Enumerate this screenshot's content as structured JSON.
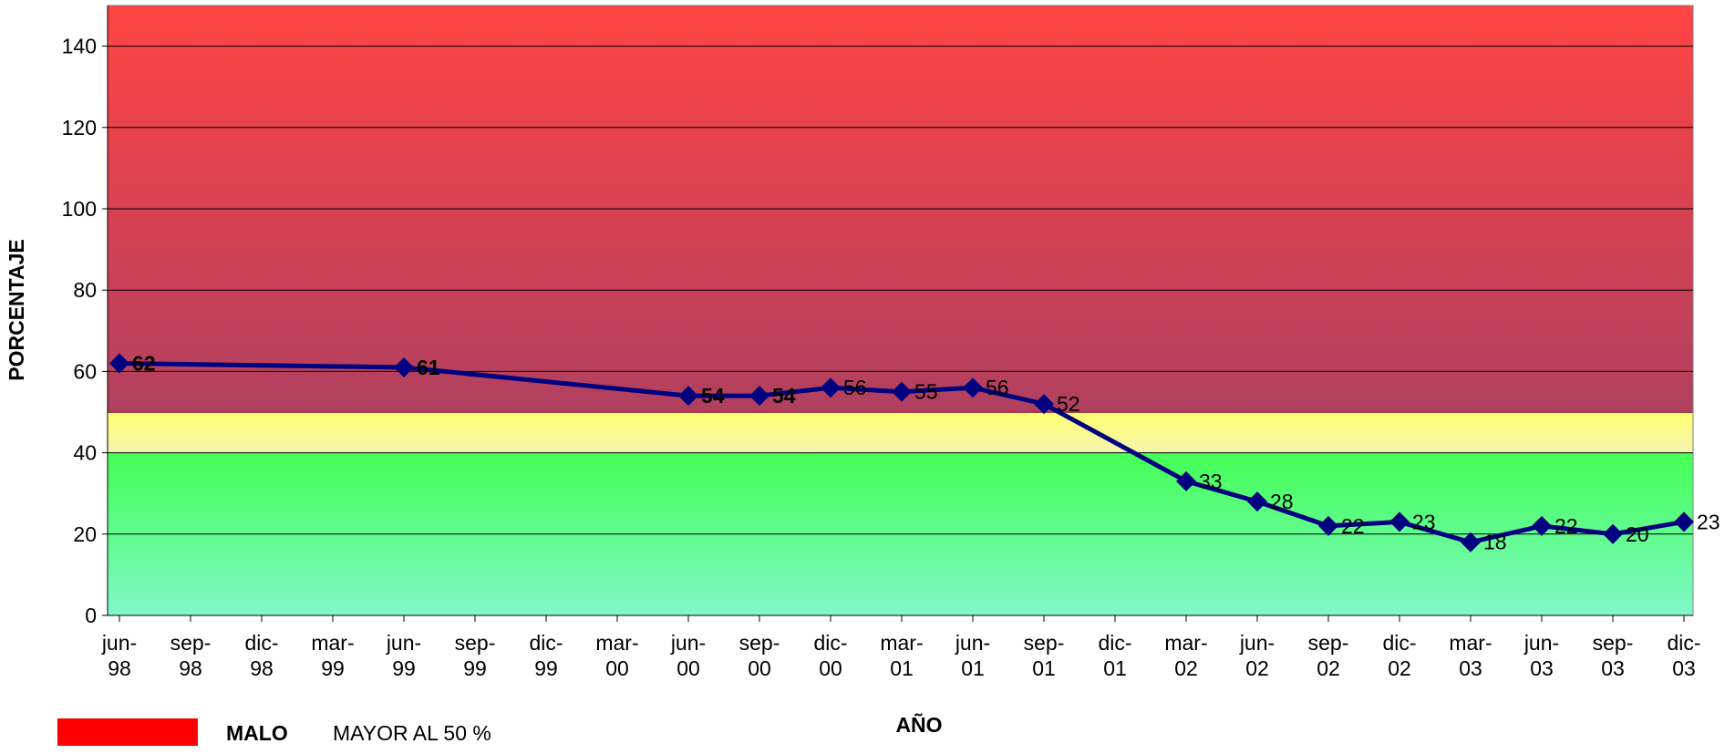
{
  "chart_data": {
    "type": "line",
    "y_label": "PORCENTAJE",
    "x_label": "AÑO",
    "categories": [
      "jun-98",
      "sep-98",
      "dic-98",
      "mar-99",
      "jun-99",
      "sep-99",
      "dic-99",
      "mar-00",
      "jun-00",
      "sep-00",
      "dic-00",
      "mar-01",
      "jun-01",
      "sep-01",
      "dic-01",
      "mar-02",
      "jun-02",
      "sep-02",
      "dic-02",
      "mar-03",
      "jun-03",
      "sep-03",
      "dic-03"
    ],
    "series": [
      {
        "color": "#000080",
        "x": [
          "jun-98",
          "jun-99",
          "jun-00",
          "sep-00",
          "dic-00",
          "mar-01",
          "jun-01",
          "sep-01",
          "mar-02",
          "jun-02",
          "sep-02",
          "dic-02",
          "mar-03",
          "jun-03",
          "sep-03",
          "dic-03"
        ],
        "values": [
          62,
          61,
          54,
          54,
          56,
          55,
          56,
          52,
          33,
          28,
          22,
          23,
          18,
          22,
          20,
          23
        ]
      }
    ],
    "ylim": [
      0,
      150
    ],
    "yticks": [
      0,
      20,
      40,
      60,
      80,
      100,
      120,
      140
    ],
    "grid": true,
    "bands": [
      {
        "from": 50,
        "to": 150,
        "colors": [
          "#ff4444",
          "#b04060"
        ]
      },
      {
        "from": 40,
        "to": 50,
        "colors": [
          "#ffff70",
          "#f4f4b0"
        ]
      },
      {
        "from": 0,
        "to": 40,
        "colors": [
          "#44ff55",
          "#80f8c8"
        ]
      }
    ],
    "legend": {
      "color": "#ff0000",
      "label": "MALO",
      "description": "MAYOR AL 50 %"
    }
  }
}
